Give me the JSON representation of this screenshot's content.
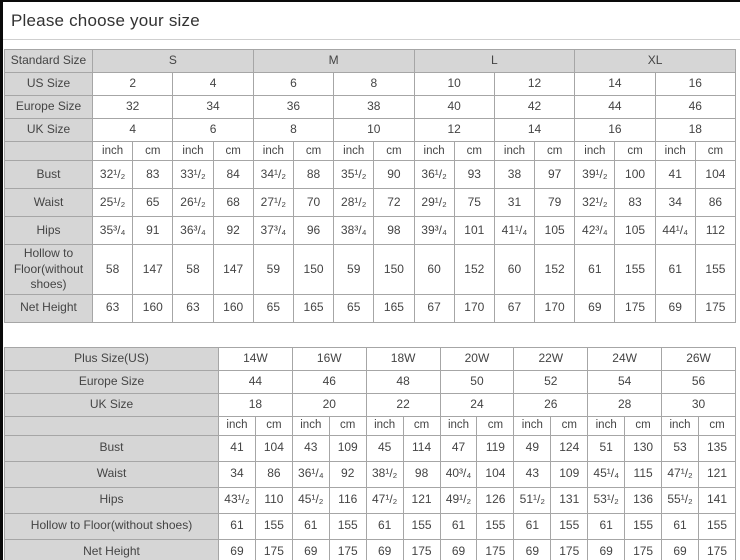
{
  "page": {
    "title": "Please choose your size"
  },
  "colors": {
    "header_bg": "#d6d6d6",
    "cell_bg": "#ffffff",
    "border": "#a6a6a6",
    "text": "#444444",
    "title_text": "#333333",
    "screen_edge": "#0a0a0a"
  },
  "standard_table": {
    "rows": [
      {
        "kind": "head",
        "label": "Standard Size",
        "cells": [
          "S",
          "M",
          "L",
          "XL"
        ]
      },
      {
        "kind": "size",
        "label": "US Size",
        "cells": [
          "2",
          "4",
          "6",
          "8",
          "10",
          "12",
          "14",
          "16"
        ]
      },
      {
        "kind": "size",
        "label": "Europe Size",
        "cells": [
          "32",
          "34",
          "36",
          "38",
          "40",
          "42",
          "44",
          "46"
        ]
      },
      {
        "kind": "size",
        "label": "UK Size",
        "cells": [
          "4",
          "6",
          "8",
          "10",
          "12",
          "14",
          "16",
          "18"
        ]
      },
      {
        "kind": "unit",
        "label": "",
        "cells": [
          "inch",
          "cm",
          "inch",
          "cm",
          "inch",
          "cm",
          "inch",
          "cm",
          "inch",
          "cm",
          "inch",
          "cm",
          "inch",
          "cm",
          "inch",
          "cm"
        ]
      },
      {
        "kind": "measure",
        "label": "Bust",
        "cells": [
          "32¹/₂",
          "83",
          "33¹/₂",
          "84",
          "34¹/₂",
          "88",
          "35¹/₂",
          "90",
          "36¹/₂",
          "93",
          "38",
          "97",
          "39¹/₂",
          "100",
          "41",
          "104"
        ]
      },
      {
        "kind": "measure",
        "label": "Waist",
        "cells": [
          "25¹/₂",
          "65",
          "26¹/₂",
          "68",
          "27¹/₂",
          "70",
          "28¹/₂",
          "72",
          "29¹/₂",
          "75",
          "31",
          "79",
          "32¹/₂",
          "83",
          "34",
          "86"
        ]
      },
      {
        "kind": "measure",
        "label": "Hips",
        "cells": [
          "35³/₄",
          "91",
          "36³/₄",
          "92",
          "37³/₄",
          "96",
          "38³/₄",
          "98",
          "39³/₄",
          "101",
          "41¹/₄",
          "105",
          "42³/₄",
          "105",
          "44¹/₄",
          "112"
        ]
      },
      {
        "kind": "measure",
        "label": "Hollow to Floor(without shoes)",
        "cells": [
          "58",
          "147",
          "58",
          "147",
          "59",
          "150",
          "59",
          "150",
          "60",
          "152",
          "60",
          "152",
          "61",
          "155",
          "61",
          "155"
        ]
      },
      {
        "kind": "measure",
        "label": "Net Height",
        "cells": [
          "63",
          "160",
          "63",
          "160",
          "65",
          "165",
          "65",
          "165",
          "67",
          "170",
          "67",
          "170",
          "69",
          "175",
          "69",
          "175"
        ]
      }
    ]
  },
  "plus_table": {
    "rows": [
      {
        "kind": "size",
        "label": "Plus Size(US)",
        "cells": [
          "14W",
          "16W",
          "18W",
          "20W",
          "22W",
          "24W",
          "26W"
        ]
      },
      {
        "kind": "size",
        "label": "Europe Size",
        "cells": [
          "44",
          "46",
          "48",
          "50",
          "52",
          "54",
          "56"
        ]
      },
      {
        "kind": "size",
        "label": "UK Size",
        "cells": [
          "18",
          "20",
          "22",
          "24",
          "26",
          "28",
          "30"
        ]
      },
      {
        "kind": "unit",
        "label": "",
        "cells": [
          "inch",
          "cm",
          "inch",
          "cm",
          "inch",
          "cm",
          "inch",
          "cm",
          "inch",
          "cm",
          "inch",
          "cm",
          "inch",
          "cm"
        ]
      },
      {
        "kind": "measure",
        "label": "Bust",
        "cells": [
          "41",
          "104",
          "43",
          "109",
          "45",
          "114",
          "47",
          "119",
          "49",
          "124",
          "51",
          "130",
          "53",
          "135"
        ]
      },
      {
        "kind": "measure",
        "label": "Waist",
        "cells": [
          "34",
          "86",
          "36¹/₄",
          "92",
          "38¹/₂",
          "98",
          "40³/₄",
          "104",
          "43",
          "109",
          "45¹/₄",
          "115",
          "47¹/₂",
          "121"
        ]
      },
      {
        "kind": "measure",
        "label": "Hips",
        "cells": [
          "43¹/₂",
          "110",
          "45¹/₂",
          "116",
          "47¹/₂",
          "121",
          "49¹/₂",
          "126",
          "51¹/₂",
          "131",
          "53¹/₂",
          "136",
          "55¹/₂",
          "141"
        ]
      },
      {
        "kind": "measure",
        "label": "Hollow to Floor(without shoes)",
        "cells": [
          "61",
          "155",
          "61",
          "155",
          "61",
          "155",
          "61",
          "155",
          "61",
          "155",
          "61",
          "155",
          "61",
          "155"
        ]
      },
      {
        "kind": "measure",
        "label": "Net Height",
        "cells": [
          "69",
          "175",
          "69",
          "175",
          "69",
          "175",
          "69",
          "175",
          "69",
          "175",
          "69",
          "175",
          "69",
          "175"
        ]
      }
    ]
  }
}
